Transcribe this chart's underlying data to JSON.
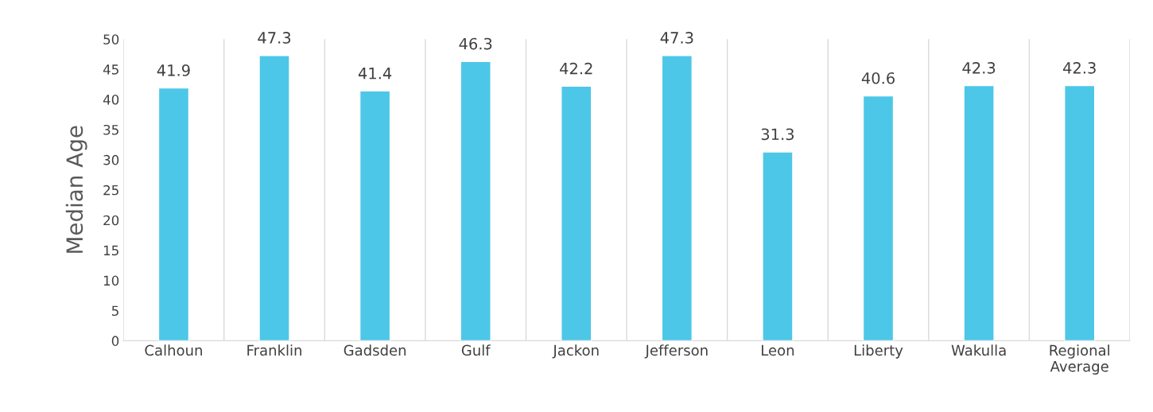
{
  "chart_data": {
    "type": "bar",
    "ylabel": "Median Age",
    "categories": [
      "Calhoun",
      "Franklin",
      "Gadsden",
      "Gulf",
      "Jackon",
      "Jefferson",
      "Leon",
      "Liberty",
      "Wakulla",
      "Regional\nAverage"
    ],
    "values": [
      41.9,
      47.3,
      41.4,
      46.3,
      42.2,
      47.3,
      31.3,
      40.6,
      42.3,
      42.3
    ],
    "color": "#4dc7e7",
    "ylim": [
      0,
      50
    ],
    "yticks": [
      0,
      5,
      10,
      15,
      20,
      25,
      30,
      35,
      40,
      45,
      50
    ],
    "grid": "x",
    "data_labels": true
  }
}
